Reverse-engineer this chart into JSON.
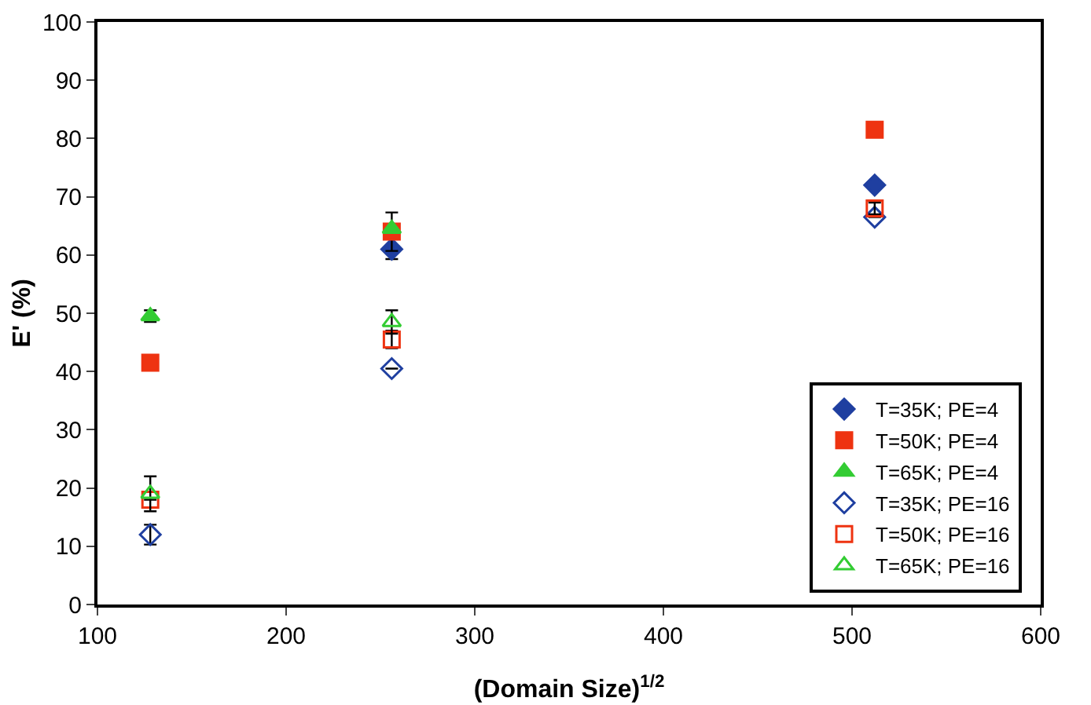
{
  "chart_data": {
    "type": "scatter",
    "xlabel": "(Domain Size)$^{1/2}$",
    "ylabel": "E' (%)",
    "x": [
      128,
      256,
      512
    ],
    "xlim": [
      100,
      600
    ],
    "xticks": [
      100,
      200,
      300,
      400,
      500,
      600
    ],
    "ylim": [
      0,
      100
    ],
    "yticks": [
      0,
      10,
      20,
      30,
      40,
      50,
      60,
      70,
      80,
      90,
      100
    ],
    "grid": false,
    "legend": "bottom right",
    "series": [
      {
        "name": "T=35K; PE=4",
        "color": "#1f3fa0",
        "marker": "diamond",
        "values": [
          null,
          61,
          72
        ],
        "errors": [
          null,
          1.7,
          null
        ]
      },
      {
        "name": "T=50K; PE=4",
        "color": "#ee3311",
        "marker": "square",
        "values": [
          41.5,
          64,
          81.5
        ],
        "errors": [
          null,
          3.3,
          null
        ]
      },
      {
        "name": "T=65K; PE=4",
        "color": "#33cc33",
        "marker": "triangle",
        "values": [
          49.5,
          64.5,
          null
        ],
        "errors": [
          1,
          null,
          null
        ]
      },
      {
        "name": "T=35K; PE=16",
        "color": "#1f3fa0",
        "marker": "diamond",
        "values": [
          12,
          40.5,
          66.5
        ],
        "errors": [
          1.7,
          null,
          null
        ]
      },
      {
        "name": "T=50K; PE=16",
        "color": "#ee3311",
        "marker": "square",
        "values": [
          18,
          45.5,
          68
        ],
        "errors": [
          null,
          1.5,
          1
        ]
      },
      {
        "name": "T=65K; PE=16",
        "color": "#33cc33",
        "marker": "triangle",
        "values": [
          19,
          48.5,
          null
        ],
        "errors": [
          3,
          2,
          null
        ]
      }
    ]
  }
}
